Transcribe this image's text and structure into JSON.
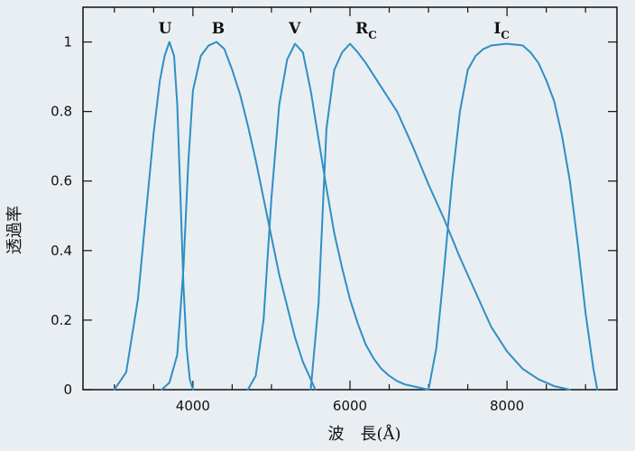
{
  "chart_data": {
    "type": "line",
    "xlabel": "波　長(Å)",
    "ylabel": "透過率",
    "xlim": [
      2600,
      9400
    ],
    "ylim": [
      0,
      1.1
    ],
    "xticks": [
      4000,
      6000,
      8000
    ],
    "xtick_labels": [
      "4000",
      "6000",
      "8000"
    ],
    "yticks": [
      0,
      0.2,
      0.4,
      0.6,
      0.8,
      1
    ],
    "ytick_labels": [
      "0",
      "0.2",
      "0.4",
      "0.6",
      "0.8",
      "1"
    ],
    "grid": false,
    "color": "#2e8fc4",
    "series": [
      {
        "name": "U",
        "label_main": "U",
        "label_sub": "",
        "label_at": [
          3560,
          1.04
        ],
        "x": [
          3000,
          3150,
          3300,
          3400,
          3500,
          3580,
          3640,
          3700,
          3760,
          3800,
          3840,
          3880,
          3920,
          3960,
          4000
        ],
        "y": [
          0,
          0.05,
          0.26,
          0.5,
          0.74,
          0.89,
          0.96,
          1.0,
          0.96,
          0.82,
          0.56,
          0.3,
          0.12,
          0.03,
          0
        ]
      },
      {
        "name": "B",
        "label_main": "B",
        "label_sub": "",
        "label_at": [
          4240,
          1.04
        ],
        "x": [
          3600,
          3700,
          3800,
          3880,
          3940,
          4000,
          4100,
          4200,
          4300,
          4400,
          4500,
          4600,
          4700,
          4800,
          4900,
          5000,
          5100,
          5200,
          5300,
          5400,
          5500,
          5560
        ],
        "y": [
          0,
          0.02,
          0.1,
          0.35,
          0.65,
          0.86,
          0.96,
          0.99,
          1.0,
          0.98,
          0.92,
          0.85,
          0.76,
          0.66,
          0.55,
          0.44,
          0.33,
          0.24,
          0.15,
          0.08,
          0.03,
          0
        ]
      },
      {
        "name": "V",
        "label_main": "V",
        "label_sub": "",
        "label_at": [
          5220,
          1.04
        ],
        "x": [
          4700,
          4800,
          4900,
          5000,
          5100,
          5200,
          5300,
          5400,
          5500,
          5600,
          5700,
          5800,
          5900,
          6000,
          6100,
          6200,
          6300,
          6400,
          6500,
          6600,
          6700,
          6800,
          6900,
          7000
        ],
        "y": [
          0,
          0.04,
          0.2,
          0.55,
          0.82,
          0.95,
          0.995,
          0.97,
          0.86,
          0.72,
          0.58,
          0.45,
          0.35,
          0.26,
          0.19,
          0.13,
          0.09,
          0.06,
          0.04,
          0.025,
          0.015,
          0.01,
          0.005,
          0
        ]
      },
      {
        "name": "Rc",
        "label_main": "R",
        "label_sub": "C",
        "label_at": [
          6070,
          1.04
        ],
        "x": [
          5500,
          5600,
          5700,
          5800,
          5900,
          6000,
          6100,
          6200,
          6400,
          6600,
          6800,
          7000,
          7200,
          7400,
          7600,
          7800,
          8000,
          8200,
          8400,
          8600,
          8800
        ],
        "y": [
          0,
          0.25,
          0.75,
          0.92,
          0.97,
          0.995,
          0.97,
          0.94,
          0.87,
          0.8,
          0.7,
          0.59,
          0.49,
          0.38,
          0.28,
          0.18,
          0.11,
          0.06,
          0.03,
          0.01,
          0
        ]
      },
      {
        "name": "Ic",
        "label_main": "I",
        "label_sub": "C",
        "label_at": [
          7830,
          1.04
        ],
        "x": [
          7000,
          7100,
          7200,
          7300,
          7400,
          7500,
          7600,
          7700,
          7800,
          8000,
          8200,
          8300,
          8400,
          8500,
          8600,
          8700,
          8800,
          8900,
          9000,
          9100,
          9150
        ],
        "y": [
          0,
          0.12,
          0.35,
          0.6,
          0.8,
          0.92,
          0.96,
          0.98,
          0.99,
          0.995,
          0.99,
          0.97,
          0.94,
          0.89,
          0.83,
          0.73,
          0.6,
          0.42,
          0.22,
          0.06,
          0
        ]
      }
    ]
  }
}
